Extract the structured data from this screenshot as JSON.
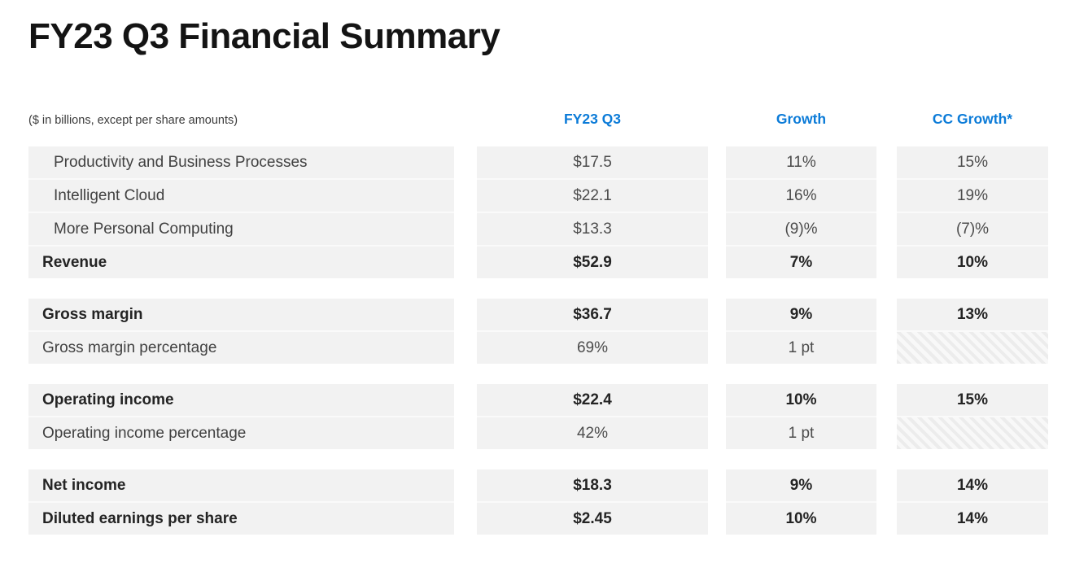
{
  "title": "FY23 Q3 Financial Summary",
  "note": "($ in billions, except per share amounts)",
  "columns": [
    "FY23 Q3",
    "Growth",
    "CC Growth*"
  ],
  "colors": {
    "accent_blue": "#0b7bd8",
    "row_background": "#f2f2f2",
    "sum_line": "#6e6e6e",
    "title_text": "#141414"
  },
  "table": {
    "rows": [
      {
        "label": "Productivity and Business Processes",
        "values": [
          "$17.5",
          "11%",
          "15%"
        ]
      },
      {
        "label": "Intelligent Cloud",
        "values": [
          "$22.1",
          "16%",
          "19%"
        ]
      },
      {
        "label": "More Personal Computing",
        "values": [
          "$13.3",
          "(9)%",
          "(7)%"
        ]
      },
      {
        "label": "Revenue",
        "values": [
          "$52.9",
          "7%",
          "10%"
        ]
      },
      {
        "label": "Gross margin",
        "values": [
          "$36.7",
          "9%",
          "13%"
        ]
      },
      {
        "label": "Gross margin percentage",
        "values": [
          "69%",
          "1 pt",
          ""
        ]
      },
      {
        "label": "Operating income",
        "values": [
          "$22.4",
          "10%",
          "15%"
        ]
      },
      {
        "label": "Operating income percentage",
        "values": [
          "42%",
          "1 pt",
          ""
        ]
      },
      {
        "label": "Net income",
        "values": [
          "$18.3",
          "9%",
          "14%"
        ]
      },
      {
        "label": "Diluted earnings per share",
        "values": [
          "$2.45",
          "10%",
          "14%"
        ]
      }
    ]
  }
}
